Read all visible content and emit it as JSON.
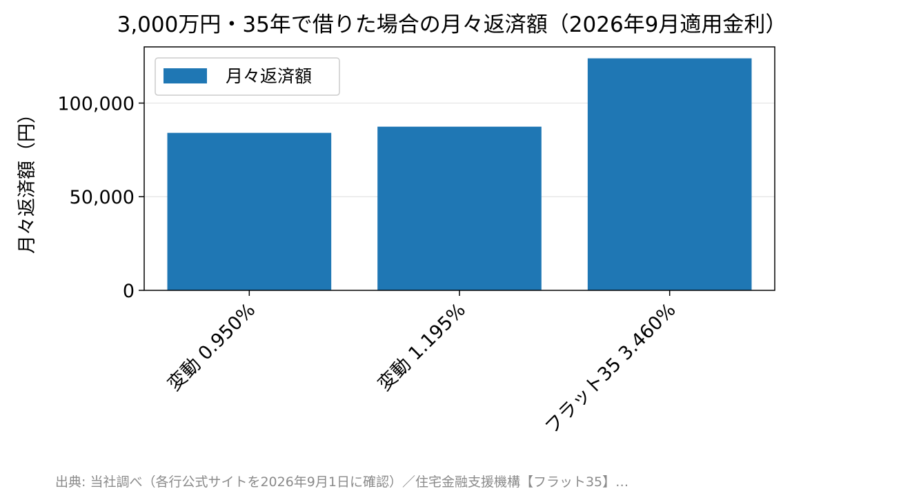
{
  "chart_data": {
    "type": "bar",
    "title": "3,000万円・35年で借りた場合の月々返済額（2026年9月適用金利）",
    "categories": [
      "変動 0.950%",
      "変動 1.195%",
      "フラット35 3.460%"
    ],
    "series": [
      {
        "name": "月々返済額",
        "values": [
          84100,
          87400,
          123900
        ]
      }
    ],
    "xlabel": "",
    "ylabel": "月々返済額（円）",
    "ylim": [
      0,
      130000
    ],
    "yticks": [
      0,
      50000,
      100000
    ],
    "ytick_labels": [
      "0",
      "50,000",
      "100,000"
    ],
    "grid": "horizontal",
    "legend": "top-left",
    "bar_color": "#1f77b4"
  },
  "source_note": "出典: 当社調べ（各行公式サイトを2026年9月1日に確認）／住宅金融支援機構【フラット35】…"
}
